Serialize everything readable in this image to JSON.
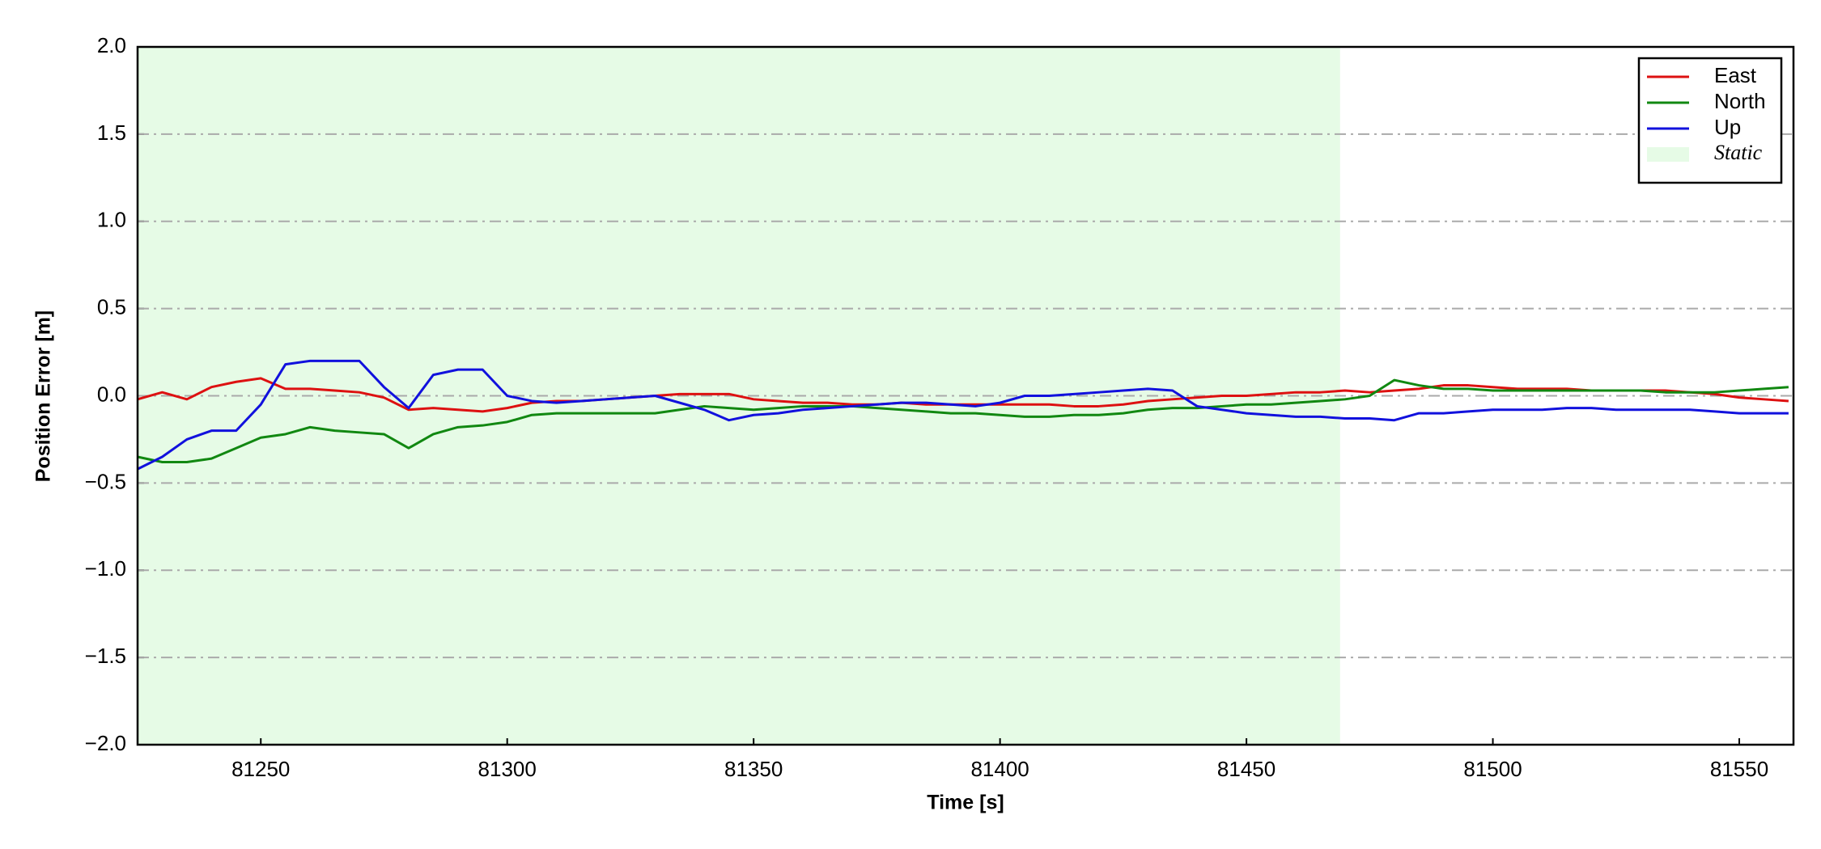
{
  "chart_data": {
    "type": "line",
    "xlabel": "Time [s]",
    "ylabel": "Position Error [m]",
    "x": [
      81225,
      81230,
      81235,
      81240,
      81245,
      81250,
      81255,
      81260,
      81265,
      81270,
      81275,
      81280,
      81285,
      81290,
      81295,
      81300,
      81305,
      81310,
      81315,
      81320,
      81325,
      81330,
      81335,
      81340,
      81345,
      81350,
      81355,
      81360,
      81365,
      81370,
      81375,
      81380,
      81385,
      81390,
      81395,
      81400,
      81405,
      81410,
      81415,
      81420,
      81425,
      81430,
      81435,
      81440,
      81445,
      81450,
      81455,
      81460,
      81465,
      81470,
      81475,
      81480,
      81485,
      81490,
      81495,
      81500,
      81505,
      81510,
      81515,
      81520,
      81525,
      81530,
      81535,
      81540,
      81545,
      81550,
      81555,
      81560
    ],
    "series": [
      {
        "name": "East",
        "color": "#dd1111",
        "values": [
          -0.02,
          0.02,
          -0.02,
          0.05,
          0.08,
          0.1,
          0.04,
          0.04,
          0.03,
          0.02,
          -0.01,
          -0.08,
          -0.07,
          -0.08,
          -0.09,
          -0.07,
          -0.04,
          -0.03,
          -0.03,
          -0.02,
          -0.01,
          0.0,
          0.01,
          0.01,
          0.01,
          -0.02,
          -0.03,
          -0.04,
          -0.04,
          -0.05,
          -0.05,
          -0.04,
          -0.05,
          -0.05,
          -0.05,
          -0.05,
          -0.05,
          -0.05,
          -0.06,
          -0.06,
          -0.05,
          -0.03,
          -0.02,
          -0.01,
          0.0,
          0.0,
          0.01,
          0.02,
          0.02,
          0.03,
          0.02,
          0.03,
          0.04,
          0.06,
          0.06,
          0.05,
          0.04,
          0.04,
          0.04,
          0.03,
          0.03,
          0.03,
          0.03,
          0.02,
          0.01,
          -0.01,
          -0.02,
          -0.03
        ]
      },
      {
        "name": "North",
        "color": "#118811",
        "values": [
          -0.35,
          -0.38,
          -0.38,
          -0.36,
          -0.3,
          -0.24,
          -0.22,
          -0.18,
          -0.2,
          -0.21,
          -0.22,
          -0.3,
          -0.22,
          -0.18,
          -0.17,
          -0.15,
          -0.11,
          -0.1,
          -0.1,
          -0.1,
          -0.1,
          -0.1,
          -0.08,
          -0.06,
          -0.07,
          -0.08,
          -0.07,
          -0.06,
          -0.06,
          -0.06,
          -0.07,
          -0.08,
          -0.09,
          -0.1,
          -0.1,
          -0.11,
          -0.12,
          -0.12,
          -0.11,
          -0.11,
          -0.1,
          -0.08,
          -0.07,
          -0.07,
          -0.06,
          -0.05,
          -0.05,
          -0.04,
          -0.03,
          -0.02,
          0.0,
          0.09,
          0.06,
          0.04,
          0.04,
          0.03,
          0.03,
          0.03,
          0.03,
          0.03,
          0.03,
          0.03,
          0.02,
          0.02,
          0.02,
          0.03,
          0.04,
          0.05
        ]
      },
      {
        "name": "Up",
        "color": "#1111dd",
        "values": [
          -0.42,
          -0.35,
          -0.25,
          -0.2,
          -0.2,
          -0.05,
          0.18,
          0.2,
          0.2,
          0.2,
          0.05,
          -0.07,
          0.12,
          0.15,
          0.15,
          0.0,
          -0.03,
          -0.04,
          -0.03,
          -0.02,
          -0.01,
          0.0,
          -0.04,
          -0.08,
          -0.14,
          -0.11,
          -0.1,
          -0.08,
          -0.07,
          -0.06,
          -0.05,
          -0.04,
          -0.04,
          -0.05,
          -0.06,
          -0.04,
          0.0,
          0.0,
          0.01,
          0.02,
          0.03,
          0.04,
          0.03,
          -0.06,
          -0.08,
          -0.1,
          -0.11,
          -0.12,
          -0.12,
          -0.13,
          -0.13,
          -0.14,
          -0.1,
          -0.1,
          -0.09,
          -0.08,
          -0.08,
          -0.08,
          -0.07,
          -0.07,
          -0.08,
          -0.08,
          -0.08,
          -0.08,
          -0.09,
          -0.1,
          -0.1,
          -0.1
        ]
      }
    ],
    "static_span": [
      81225,
      81469
    ],
    "static_label": "Static",
    "static_color": "#e6fbe6",
    "xlim": [
      81225,
      81561
    ],
    "xticks": [
      81250,
      81300,
      81350,
      81400,
      81450,
      81500,
      81550
    ],
    "ylim": [
      -2.0,
      2.0
    ],
    "yticks": [
      {
        "value": -2.0,
        "label": "−2.0"
      },
      {
        "value": -1.5,
        "label": "−1.5"
      },
      {
        "value": -1.0,
        "label": "−1.0"
      },
      {
        "value": -0.5,
        "label": "−0.5"
      },
      {
        "value": 0.0,
        "label": "0.0"
      },
      {
        "value": 0.5,
        "label": "0.5"
      },
      {
        "value": 1.0,
        "label": "1.0"
      },
      {
        "value": 1.5,
        "label": "1.5"
      },
      {
        "value": 2.0,
        "label": "2.0"
      }
    ],
    "grid": true,
    "legend": "upper right"
  }
}
